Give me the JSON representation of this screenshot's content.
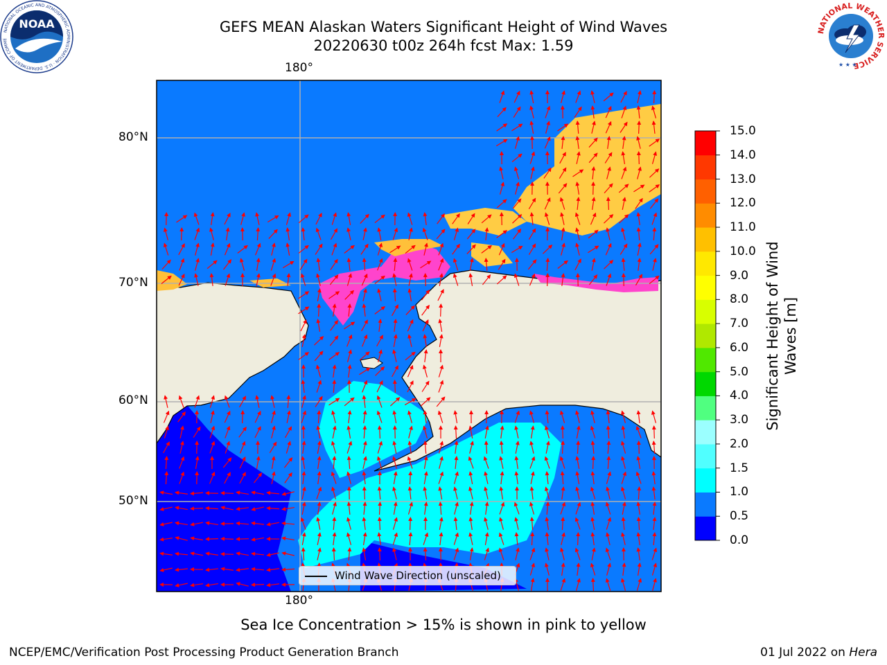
{
  "title": {
    "line1": "GEFS MEAN Alaskan Waters Significant Height of Wind Waves",
    "line2": "20220630 t00z 264h fcst   Max: 1.59"
  },
  "map": {
    "lon_label_top": "180°",
    "lon_label_bottom": "180°",
    "lat_labels": [
      "80°N",
      "70°N",
      "60°N",
      "50°N"
    ],
    "legend_label": "Wind Wave Direction (unscaled)",
    "gridlines": true,
    "land_color": "#efedde",
    "ice_colors": [
      "#ff44cc",
      "#ffa040",
      "#ffcf40"
    ],
    "arrow_color": "#ff0000"
  },
  "colorbar": {
    "title_line1": "Significant Height of Wind",
    "title_line2": "Waves [m]",
    "ticks": [
      "0.0",
      "0.5",
      "1.0",
      "1.5",
      "2.0",
      "3.0",
      "4.0",
      "5.0",
      "6.0",
      "7.0",
      "8.0",
      "9.0",
      "10.0",
      "11.0",
      "12.0",
      "13.0",
      "14.0",
      "15.0"
    ],
    "colors": [
      "#0000ff",
      "#0a7aff",
      "#00ffff",
      "#50ffff",
      "#9bffff",
      "#50ff80",
      "#00d800",
      "#50e800",
      "#b0e800",
      "#d8ff00",
      "#ffff00",
      "#ffe800",
      "#ffc000",
      "#ff8c00",
      "#ff6000",
      "#ff3800",
      "#ff0000"
    ]
  },
  "logos": {
    "noaa_text": "NOAA",
    "noaa_ring_text": "NATIONAL OCEANIC AND ATMOSPHERIC ADMINISTRATION · U.S. DEPARTMENT OF COMMERCE",
    "nws_ring_text": "NATIONAL WEATHER SERVICE"
  },
  "footer": {
    "note": "Sea Ice Concentration > 15% is shown in pink to yellow",
    "left": "NCEP/EMC/Verification Post Processing Product Generation Branch",
    "right_prefix": "01 Jul 2022 on ",
    "right_host": "Hera"
  }
}
